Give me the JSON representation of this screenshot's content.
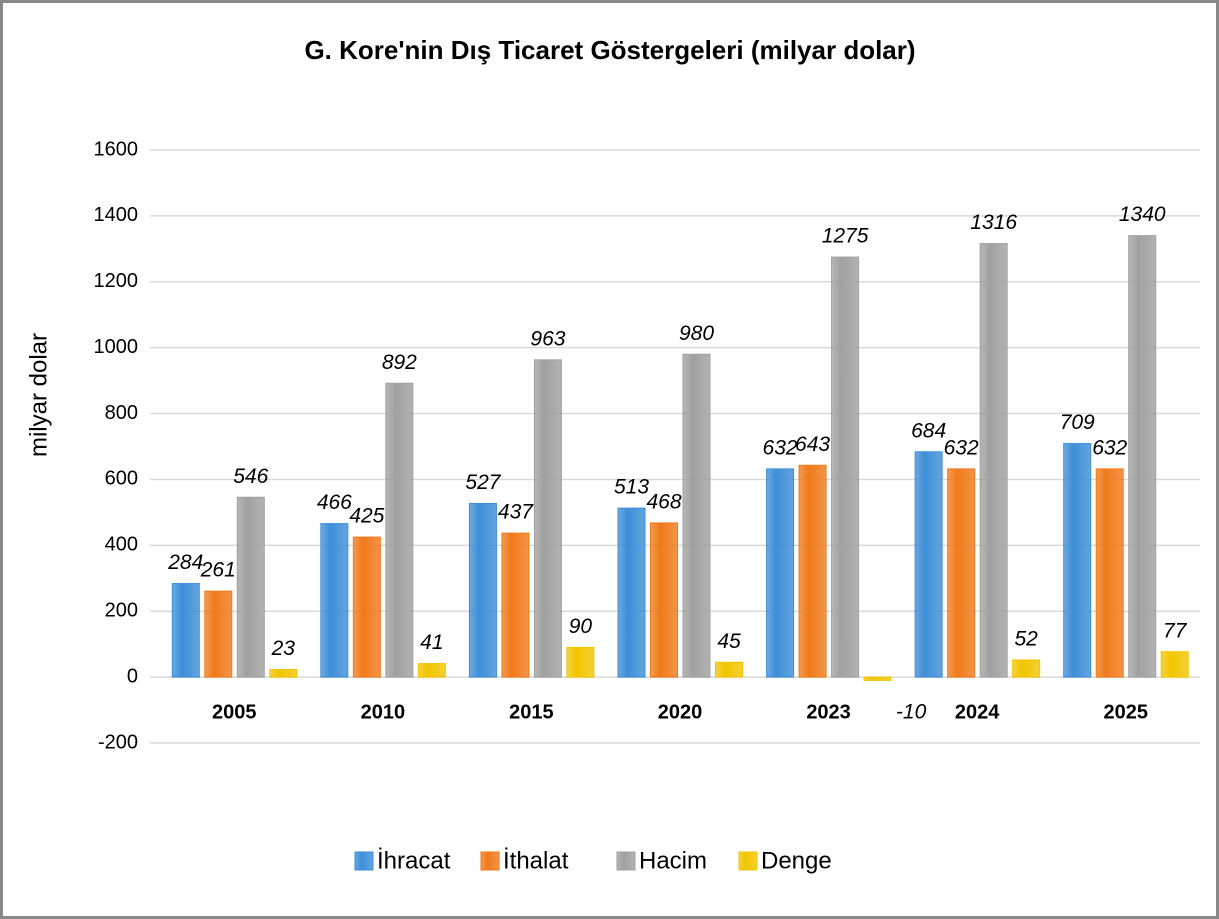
{
  "chart_data": {
    "type": "bar",
    "title": "G. Kore'nin Dış Ticaret Göstergeleri (milyar dolar)",
    "y_label": "milyar dolar",
    "categories": [
      "2005",
      "2010",
      "2015",
      "2020",
      "2023",
      "2024",
      "2025"
    ],
    "series": [
      {
        "name": "İhracat",
        "color": "#3d8ed8",
        "values": [
          284,
          466,
          527,
          513,
          632,
          684,
          709
        ]
      },
      {
        "name": "İthalat",
        "color": "#f07a1a",
        "values": [
          261,
          425,
          437,
          468,
          643,
          632,
          632
        ]
      },
      {
        "name": "Hacim",
        "color": "#a0a0a0",
        "values": [
          546,
          892,
          963,
          980,
          1275,
          1316,
          1340
        ]
      },
      {
        "name": "Denge",
        "color": "#f2c500",
        "values": [
          23,
          41,
          90,
          45,
          -10,
          52,
          77
        ]
      }
    ],
    "ylim": [
      -200,
      1600
    ],
    "yticks": [
      -200,
      0,
      200,
      400,
      600,
      800,
      1000,
      1200,
      1400,
      1600
    ],
    "grid": true,
    "legend": "bottom"
  }
}
